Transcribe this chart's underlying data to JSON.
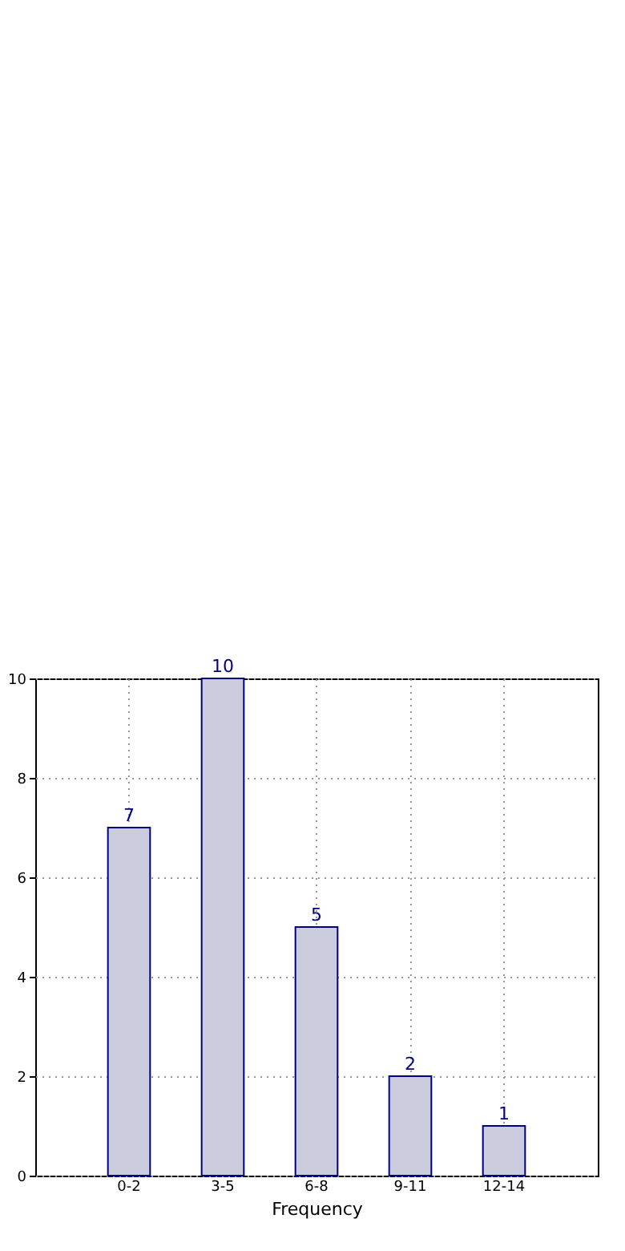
{
  "chart_data": {
    "type": "bar",
    "xlabel": "Frequency",
    "categories": [
      "0-2",
      "3-5",
      "6-8",
      "9-11",
      "12-14"
    ],
    "series": [
      {
        "color": "#ccccdf",
        "values": [
          7,
          10,
          5,
          2,
          1
        ]
      }
    ],
    "ylim": [
      0,
      10
    ],
    "yticks": [
      0,
      2,
      4,
      6,
      8,
      10
    ],
    "grid": true,
    "data_labels": true
  }
}
